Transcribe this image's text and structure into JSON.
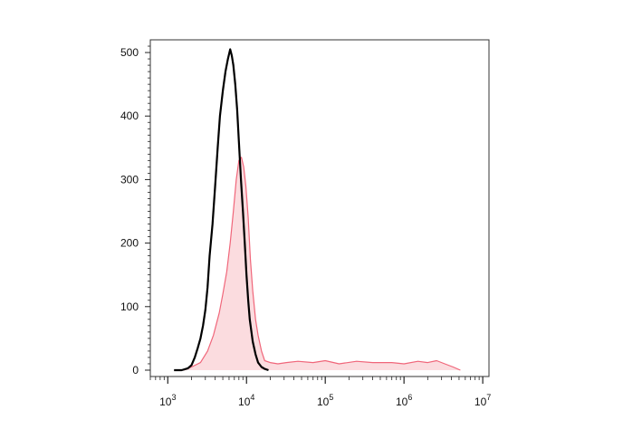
{
  "chart_data": {
    "type": "area",
    "title": "",
    "xlabel": "",
    "ylabel": "",
    "x_scale": "log",
    "xlim": [
      600,
      12000000
    ],
    "ylim": [
      -10,
      520
    ],
    "y_ticks": [
      0,
      100,
      200,
      300,
      400,
      500
    ],
    "x_ticks": [
      {
        "value": 1000,
        "base": "10",
        "exp": "3"
      },
      {
        "value": 10000,
        "base": "10",
        "exp": "4"
      },
      {
        "value": 100000,
        "base": "10",
        "exp": "5"
      },
      {
        "value": 1000000,
        "base": "10",
        "exp": "6"
      },
      {
        "value": 10000000,
        "base": "10",
        "exp": "7"
      }
    ],
    "grid": false,
    "legend": "none",
    "series": [
      {
        "style": "filled",
        "color": "#f0667a",
        "fill": "#fbdcdf",
        "x": [
          1600,
          2000,
          2600,
          3200,
          3800,
          4500,
          5000,
          5600,
          6200,
          6800,
          7400,
          8000,
          8600,
          9200,
          9800,
          10500,
          11200,
          12000,
          13000,
          14000,
          15500,
          17000,
          20000,
          25000,
          32000,
          45000,
          70000,
          100000,
          150000,
          250000,
          400000,
          700000,
          1000000,
          1500000,
          2000000,
          2600000,
          3300000,
          4200000,
          5200000
        ],
        "y": [
          0,
          5,
          12,
          30,
          55,
          90,
          120,
          155,
          200,
          250,
          300,
          330,
          335,
          320,
          290,
          240,
          175,
          125,
          80,
          55,
          30,
          15,
          12,
          10,
          12,
          14,
          12,
          15,
          10,
          14,
          12,
          12,
          10,
          14,
          12,
          15,
          10,
          5,
          0
        ]
      },
      {
        "style": "line",
        "color": "#000000",
        "x": [
          1200,
          1500,
          1800,
          2000,
          2200,
          2400,
          2600,
          2800,
          3000,
          3200,
          3400,
          3700,
          4000,
          4300,
          4600,
          5000,
          5400,
          5800,
          6200,
          6500,
          6800,
          7200,
          7600,
          8000,
          8500,
          9000,
          9500,
          10000,
          10500,
          11000,
          12000,
          13000,
          14000,
          15500,
          17000,
          19000
        ],
        "y": [
          0,
          0,
          3,
          8,
          20,
          35,
          50,
          70,
          95,
          130,
          180,
          230,
          290,
          350,
          400,
          440,
          470,
          490,
          505,
          495,
          480,
          450,
          410,
          360,
          300,
          250,
          200,
          150,
          110,
          80,
          45,
          25,
          12,
          5,
          2,
          0
        ]
      }
    ]
  }
}
